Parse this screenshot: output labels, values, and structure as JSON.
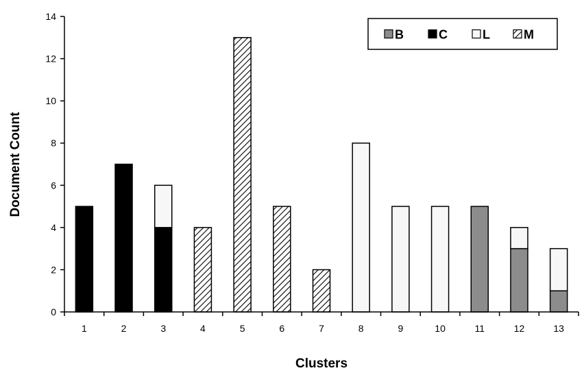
{
  "chart_data": {
    "type": "bar",
    "stacked": true,
    "title": "",
    "xlabel": "Clusters",
    "ylabel": "Document Count",
    "ylim": [
      0,
      14
    ],
    "yticks": [
      0,
      2,
      4,
      6,
      8,
      10,
      12,
      14
    ],
    "categories": [
      "1",
      "2",
      "3",
      "4",
      "5",
      "6",
      "7",
      "8",
      "9",
      "10",
      "11",
      "12",
      "13"
    ],
    "series": [
      {
        "name": "B",
        "values": [
          0,
          0,
          0,
          0,
          0,
          0,
          0,
          0,
          0,
          0,
          5,
          3,
          1
        ],
        "fill": "#8c8c8c",
        "pattern": "solid"
      },
      {
        "name": "C",
        "values": [
          5,
          7,
          4,
          0,
          0,
          0,
          0,
          0,
          0,
          0,
          0,
          0,
          0
        ],
        "fill": "#000000",
        "pattern": "solid"
      },
      {
        "name": "L",
        "values": [
          0,
          0,
          2,
          0,
          0,
          0,
          0,
          8,
          5,
          5,
          0,
          1,
          2
        ],
        "fill": "#f7f7f7",
        "pattern": "solid"
      },
      {
        "name": "M",
        "values": [
          0,
          0,
          0,
          4,
          13,
          5,
          2,
          0,
          0,
          0,
          0,
          0,
          0
        ],
        "fill": "#ffffff",
        "pattern": "diagonal-hatch"
      }
    ],
    "grid": false,
    "legend_position": "top-right"
  }
}
